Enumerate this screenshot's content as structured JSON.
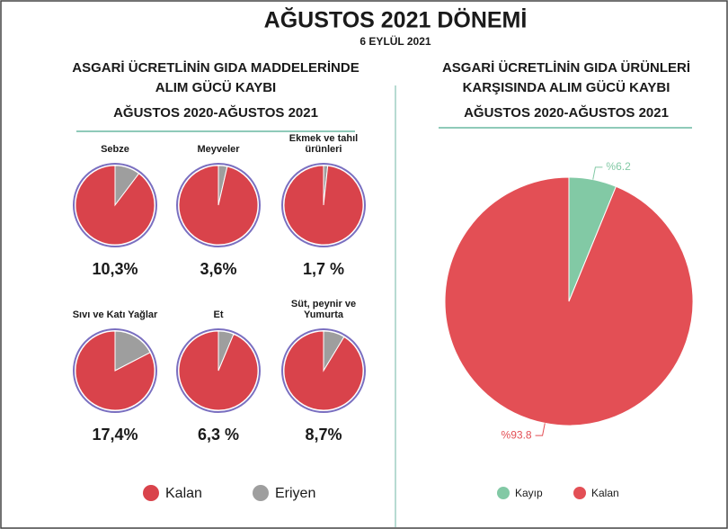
{
  "header": {
    "title": "AĞUSTOS 2021 DÖNEMİ",
    "subtitle": "6 EYLÜL 2021"
  },
  "chart_data": [
    {
      "type": "pie-grid",
      "title": [
        "ASGARİ ÜCRETLİNİN GIDA MADDELERİNDE",
        "ALIM GÜCÜ KAYBI"
      ],
      "subtitle": "AĞUSTOS 2020-AĞUSTOS 2021",
      "categories": [
        "Kalan",
        "Eriyen"
      ],
      "colors": [
        "#d9434b",
        "#9e9e9e"
      ],
      "pies": [
        {
          "title": [
            "Sebze"
          ],
          "values": [
            89.7,
            10.3
          ],
          "value_labels": [
            null,
            "10,3%"
          ]
        },
        {
          "title": [
            "Meyveler"
          ],
          "values": [
            96.4,
            3.6
          ],
          "value_labels": [
            null,
            "3,6%"
          ]
        },
        {
          "title": [
            "Ekmek ve tahıl",
            "ürünleri"
          ],
          "values": [
            98.3,
            1.7
          ],
          "value_labels": [
            null,
            "1,7 %"
          ]
        },
        {
          "title": [
            "Sıvı ve Katı Yağlar"
          ],
          "values": [
            82.6,
            17.4
          ],
          "value_labels": [
            null,
            "17,4%"
          ]
        },
        {
          "title": [
            "Et"
          ],
          "values": [
            93.7,
            6.3
          ],
          "value_labels": [
            null,
            "6,3 %"
          ]
        },
        {
          "title": [
            "Süt, peynir ve",
            "Yumurta"
          ],
          "values": [
            91.3,
            8.7
          ],
          "value_labels": [
            null,
            "8,7%"
          ]
        }
      ]
    },
    {
      "type": "pie",
      "title": [
        "ASGARİ ÜCRETLİNİN GIDA ÜRÜNLERİ",
        "KARŞISINDA ALIM GÜCÜ KAYBI"
      ],
      "subtitle": "AĞUSTOS 2020-AĞUSTOS 2021",
      "categories": [
        "Kayıp",
        "Kalan"
      ],
      "colors": [
        "#82c9a5",
        "#e34f55"
      ],
      "values": [
        6.2,
        93.8
      ],
      "value_labels": [
        "%6.2",
        "%93.8"
      ]
    }
  ]
}
